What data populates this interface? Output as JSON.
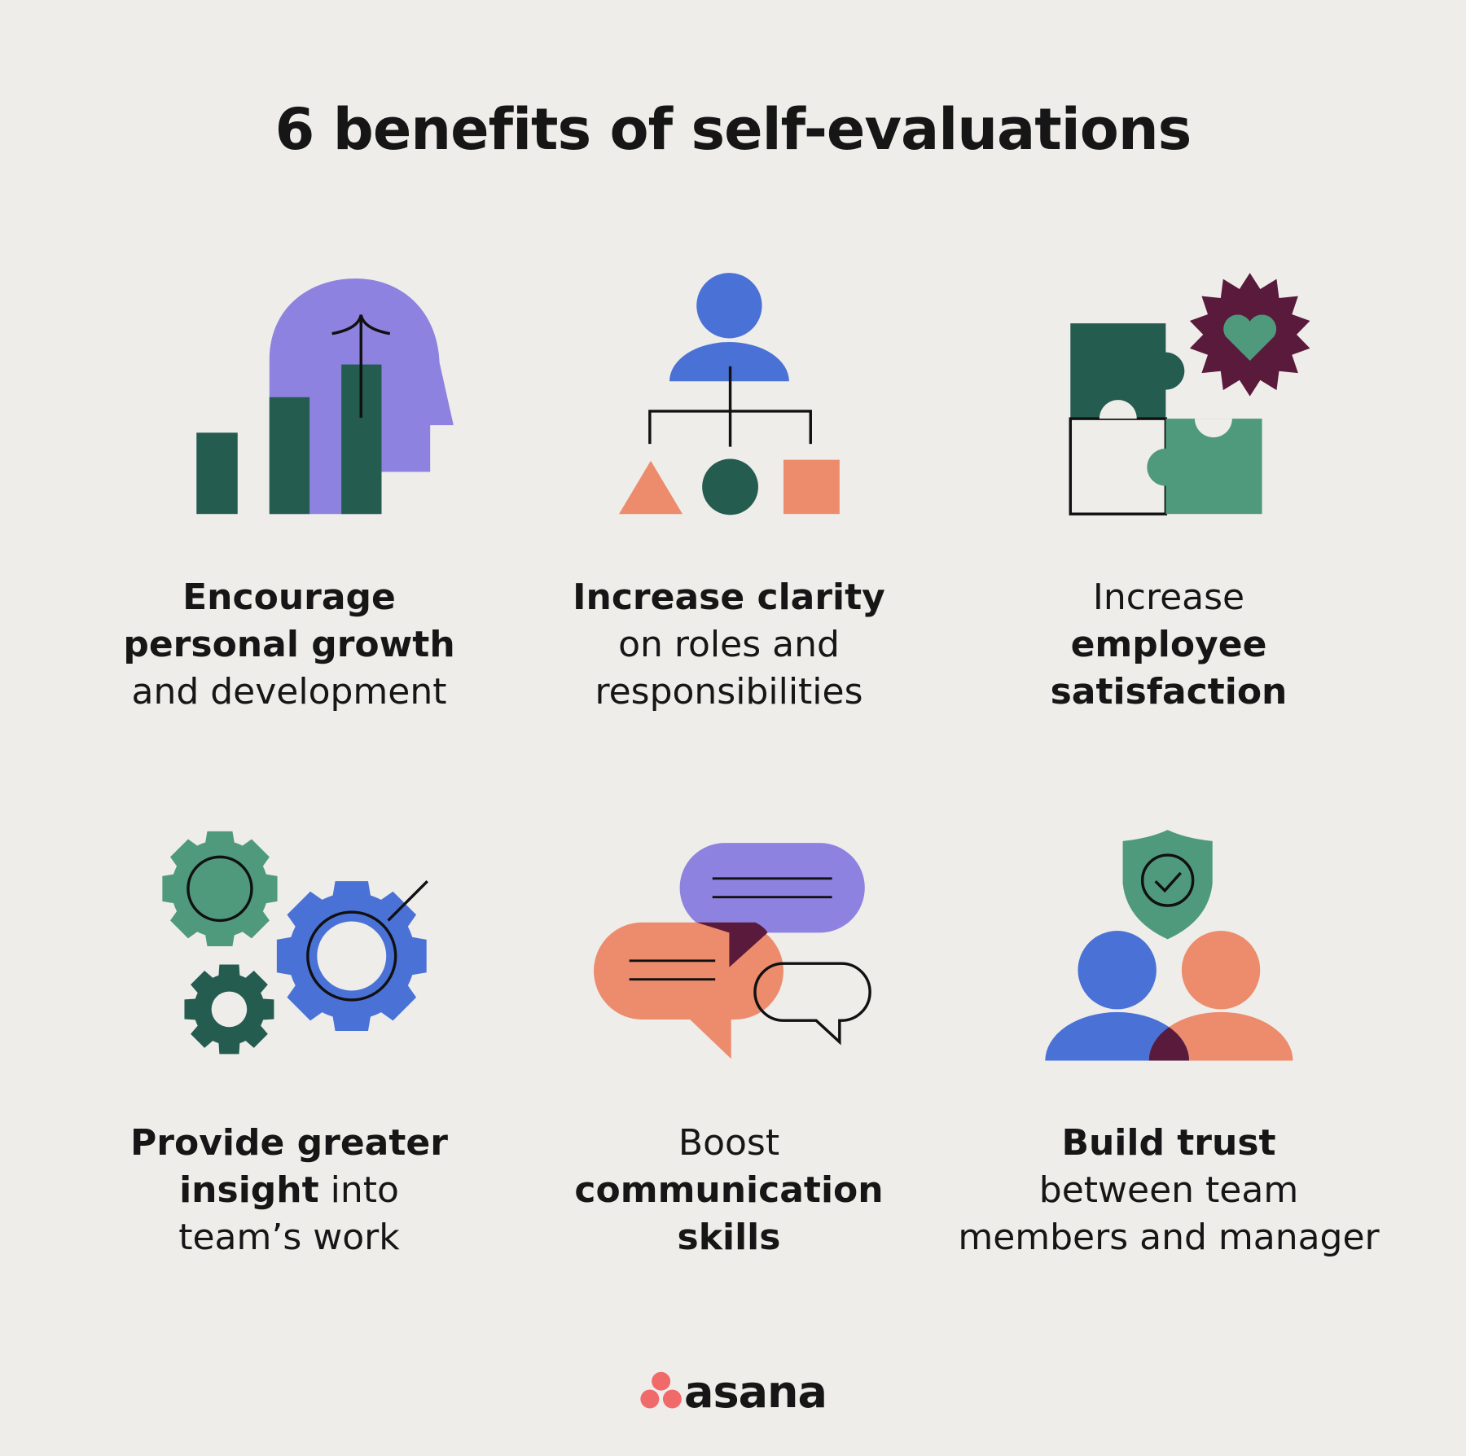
{
  "title": "6 benefits of self-evaluations",
  "benefits": [
    {
      "icon": "head-growth-chart-icon",
      "lines": [
        [
          {
            "t": "Encourage",
            "b": true
          }
        ],
        [
          {
            "t": "personal growth",
            "b": true
          }
        ],
        [
          {
            "t": "and development",
            "b": false
          }
        ]
      ]
    },
    {
      "icon": "org-chart-icon",
      "lines": [
        [
          {
            "t": "Increase clarity",
            "b": true
          }
        ],
        [
          {
            "t": "on roles and",
            "b": false
          }
        ],
        [
          {
            "t": "responsibilities",
            "b": false
          }
        ]
      ]
    },
    {
      "icon": "puzzle-heart-icon",
      "lines": [
        [
          {
            "t": "Increase",
            "b": false
          }
        ],
        [
          {
            "t": "employee",
            "b": true
          }
        ],
        [
          {
            "t": "satisfaction",
            "b": true
          }
        ]
      ]
    },
    {
      "icon": "gears-icon",
      "lines": [
        [
          {
            "t": "Provide greater",
            "b": true
          }
        ],
        [
          {
            "t": "insight",
            "b": true
          },
          {
            "t": " into",
            "b": false
          }
        ],
        [
          {
            "t": "team’s work",
            "b": false
          }
        ]
      ]
    },
    {
      "icon": "speech-bubbles-icon",
      "lines": [
        [
          {
            "t": "Boost",
            "b": false
          }
        ],
        [
          {
            "t": "communication",
            "b": true
          }
        ],
        [
          {
            "t": "skills",
            "b": true
          }
        ]
      ]
    },
    {
      "icon": "shield-people-icon",
      "lines": [
        [
          {
            "t": "Build trust",
            "b": true
          }
        ],
        [
          {
            "t": "between team",
            "b": false
          }
        ],
        [
          {
            "t": "members and manager",
            "b": false
          }
        ]
      ]
    }
  ],
  "logo": {
    "text": "asana",
    "color": "#f06a6a"
  },
  "colors": {
    "background": "#efedea",
    "dark_green": "#255c50",
    "green": "#4f9a7c",
    "purple": "#8e82e0",
    "blue": "#4a72d6",
    "coral": "#ec8c6c",
    "plum": "#5a1a3c"
  }
}
